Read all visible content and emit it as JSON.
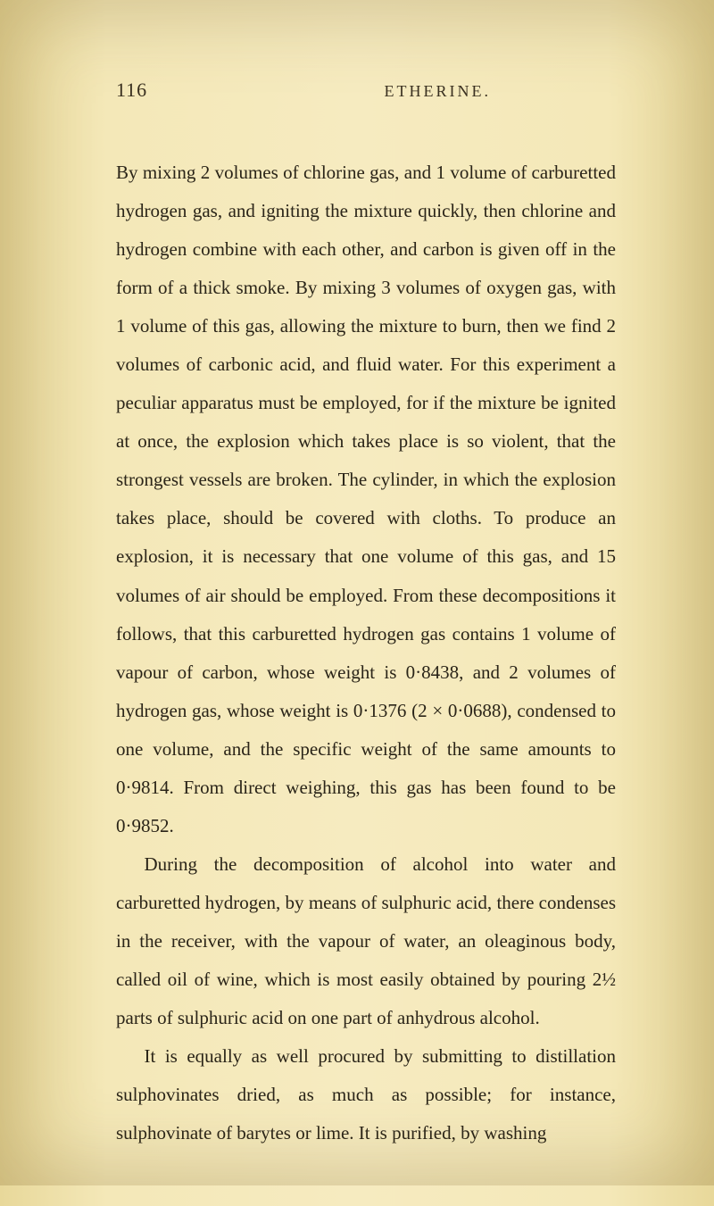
{
  "page": {
    "number": "116",
    "running_title": "ETHERINE.",
    "background_color": "#f4e8b8",
    "text_color": "#2a2418",
    "font_size_body": 21,
    "line_height": 2.05,
    "font_family": "Georgia, serif"
  },
  "paragraphs": [
    "By mixing 2 volumes of chlorine gas, and 1 volume of carburetted hydrogen gas, and igniting the mixture quickly, then chlorine and hydrogen combine with each other, and carbon is given off in the form of a thick smoke. By mixing 3 volumes of oxygen gas, with 1 volume of this gas, allowing the mixture to burn, then we find 2 volumes of carbonic acid, and fluid water. For this experiment a peculiar apparatus must be employed, for if the mixture be ignited at once, the explosion which takes place is so violent, that the strongest vessels are broken. The cylinder, in which the explosion takes place, should be covered with cloths. To produce an explosion, it is necessary that one volume of this gas, and 15 volumes of air should be employed. From these decompositions it follows, that this carburetted hydrogen gas contains 1 volume of vapour of carbon, whose weight is 0·8438, and 2 volumes of hydrogen gas, whose weight is 0·1376 (2 × 0·0688), condensed to one volume, and the specific weight of the same amounts to 0·9814. From direct weighing, this gas has been found to be 0·9852.",
    "During the decomposition of alcohol into water and carburetted hydrogen, by means of sulphuric acid, there condenses in the receiver, with the vapour of water, an oleaginous body, called oil of wine, which is most easily obtained by pouring 2½ parts of sulphuric acid on one part of anhydrous alcohol.",
    "It is equally as well procured by submitting to distillation sulphovinates dried, as much as possible; for instance, sulphovinate of barytes or lime. It is purified, by washing"
  ]
}
